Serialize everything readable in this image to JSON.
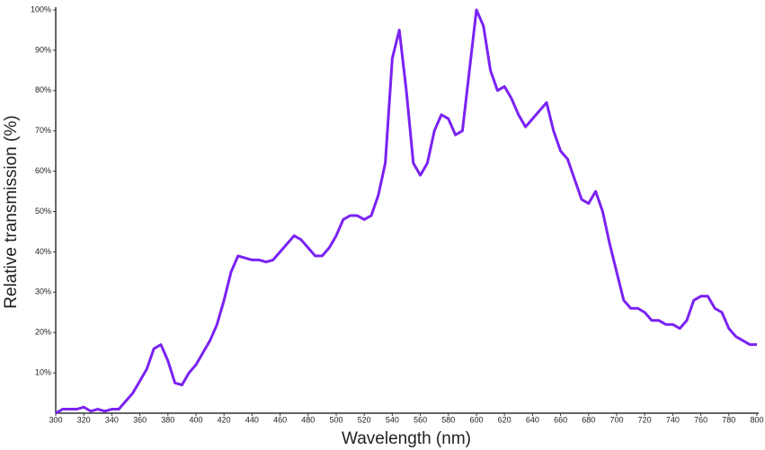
{
  "chart_data": {
    "type": "line",
    "xlabel": "Wavelength (nm)",
    "ylabel": "Relative transmission (%)",
    "x": [
      300,
      305,
      310,
      315,
      320,
      325,
      330,
      335,
      340,
      345,
      350,
      355,
      360,
      365,
      370,
      375,
      380,
      385,
      390,
      395,
      400,
      405,
      410,
      415,
      420,
      425,
      430,
      435,
      440,
      445,
      450,
      455,
      460,
      465,
      470,
      475,
      480,
      485,
      490,
      495,
      500,
      505,
      510,
      515,
      520,
      525,
      530,
      535,
      540,
      545,
      550,
      555,
      560,
      565,
      570,
      575,
      580,
      585,
      590,
      595,
      600,
      605,
      610,
      615,
      620,
      625,
      630,
      635,
      640,
      645,
      650,
      655,
      660,
      665,
      670,
      675,
      680,
      685,
      690,
      695,
      700,
      705,
      710,
      715,
      720,
      725,
      730,
      735,
      740,
      745,
      750,
      755,
      760,
      765,
      770,
      775,
      780,
      785,
      790,
      795,
      800
    ],
    "series": [
      {
        "color": "#7b22f2",
        "values": [
          0,
          1,
          1,
          1,
          1.5,
          0.5,
          1,
          0.5,
          1,
          1,
          3,
          5,
          8,
          11,
          16,
          17,
          13,
          7.5,
          7,
          10,
          12,
          15,
          18,
          22,
          28,
          35,
          39,
          38.5,
          38,
          38,
          37.5,
          38,
          40,
          42,
          44,
          43,
          41,
          39,
          39,
          41,
          44,
          48,
          49,
          49,
          48,
          49,
          54,
          62,
          88,
          95,
          80,
          62,
          59,
          62,
          70,
          74,
          73,
          69,
          70,
          85,
          100,
          96,
          85,
          80,
          81,
          78,
          74,
          71,
          73,
          75,
          77,
          70,
          65,
          63,
          58,
          53,
          52,
          55,
          50,
          42,
          35,
          28,
          26,
          26,
          25,
          23,
          23,
          22,
          22,
          21,
          23,
          28,
          29,
          29,
          26,
          25,
          21,
          19,
          18,
          17,
          17
        ]
      }
    ],
    "xlim": [
      300,
      800
    ],
    "ylim": [
      0,
      100
    ],
    "xticks": [
      300,
      320,
      340,
      360,
      380,
      400,
      420,
      440,
      460,
      480,
      500,
      520,
      540,
      560,
      580,
      600,
      620,
      640,
      660,
      680,
      700,
      720,
      740,
      760,
      780,
      800
    ],
    "yticks": [
      {
        "value": 10,
        "label": "10%"
      },
      {
        "value": 20,
        "label": "20%"
      },
      {
        "value": 30,
        "label": "30%"
      },
      {
        "value": 40,
        "label": "40%"
      },
      {
        "value": 50,
        "label": "50%"
      },
      {
        "value": 60,
        "label": "60%"
      },
      {
        "value": 70,
        "label": "70%"
      },
      {
        "value": 80,
        "label": "80%"
      },
      {
        "value": 90,
        "label": "90%"
      },
      {
        "value": 100,
        "label": "100%"
      }
    ],
    "grid": false
  }
}
